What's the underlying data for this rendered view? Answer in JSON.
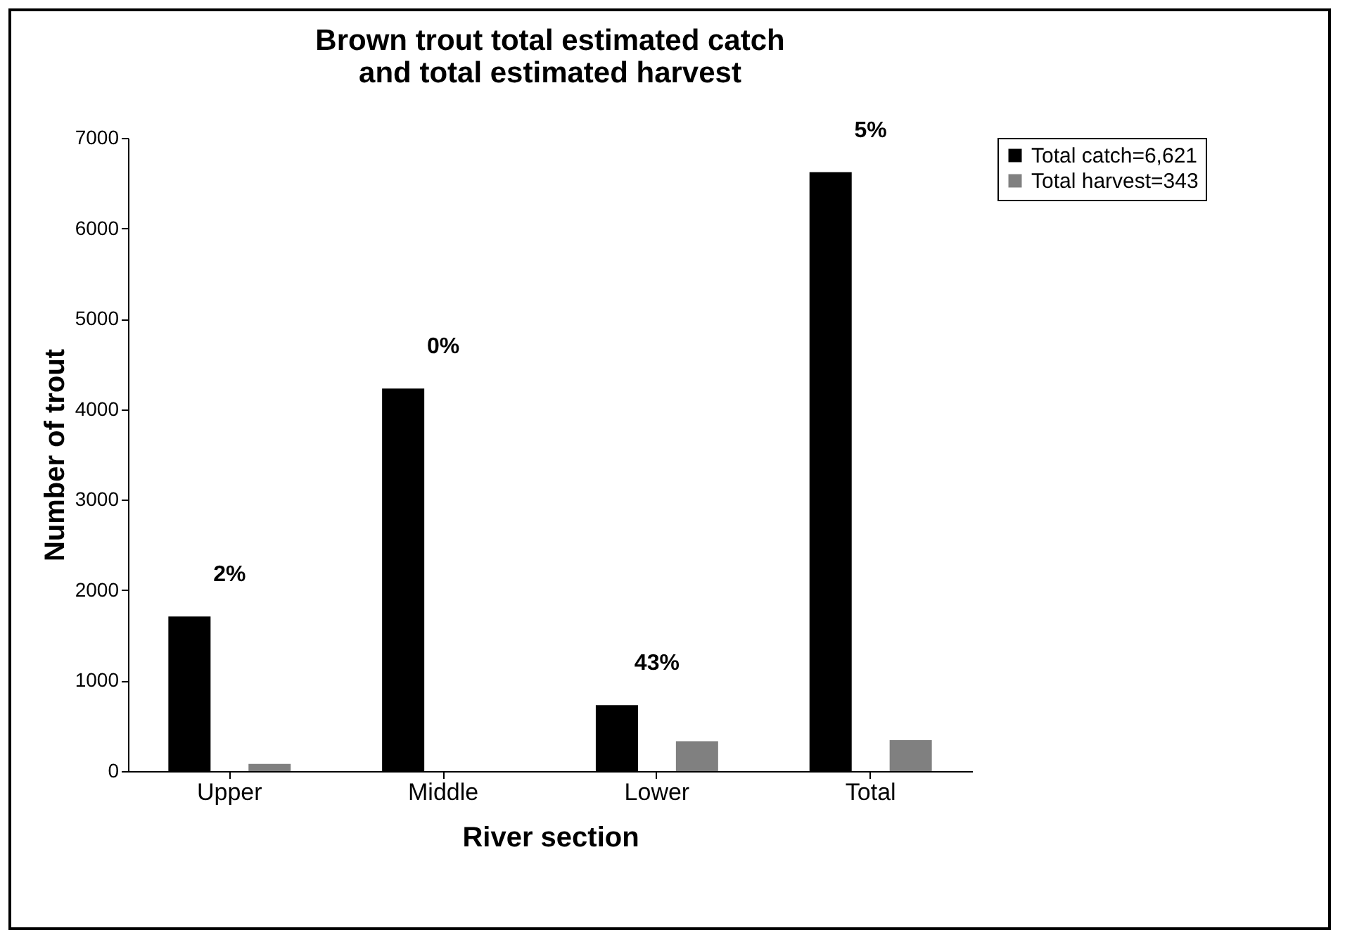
{
  "chart_data": {
    "type": "bar",
    "title": [
      "Brown trout total estimated catch",
      "and total estimated harvest"
    ],
    "xlabel": "River section",
    "ylabel": "Number of trout",
    "categories": [
      "Upper",
      "Middle",
      "Lower",
      "Total"
    ],
    "series": [
      {
        "name": "Total catch=6,621",
        "color": "#000000",
        "values": [
          1710,
          4230,
          730,
          6621
        ]
      },
      {
        "name": "Total harvest=343",
        "color": "#808080",
        "values": [
          80,
          0,
          330,
          343
        ]
      }
    ],
    "ylim": [
      0,
      7000
    ],
    "yticks": [
      0,
      1000,
      2000,
      3000,
      4000,
      5000,
      6000,
      7000
    ],
    "grid": false,
    "legend": "right",
    "annotations": [
      "2%",
      "0%",
      "43%",
      "5%"
    ]
  }
}
